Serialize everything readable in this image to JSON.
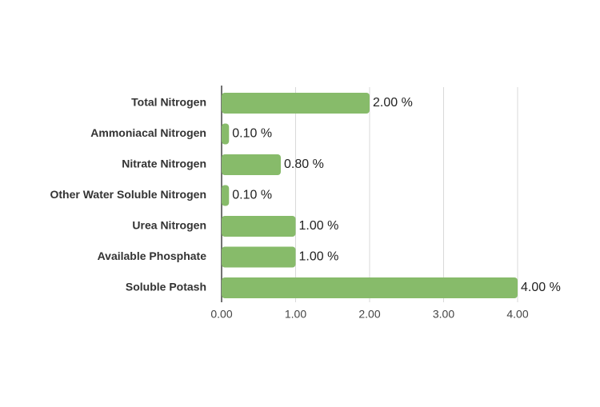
{
  "chart_data": {
    "type": "bar",
    "orientation": "horizontal",
    "categories": [
      "Total Nitrogen",
      "Ammoniacal Nitrogen",
      "Nitrate Nitrogen",
      "Other Water Soluble Nitrogen",
      "Urea Nitrogen",
      "Available Phosphate",
      "Soluble Potash"
    ],
    "values": [
      2,
      0.1,
      0.8,
      0.1,
      1,
      1,
      4
    ],
    "value_labels": [
      "2.00 %",
      "0.10 %",
      "0.80 %",
      "0.10 %",
      "1.00 %",
      "1.00 %",
      "4.00 %"
    ],
    "color": "#87bb6a",
    "xlim": [
      0,
      4
    ],
    "xticks": [
      {
        "value": 0,
        "label": "0.00"
      },
      {
        "value": 1,
        "label": "1.00"
      },
      {
        "value": 2,
        "label": "2.00"
      },
      {
        "value": 3,
        "label": "3.00"
      },
      {
        "value": 4,
        "label": "4.00"
      }
    ],
    "grid": true
  }
}
